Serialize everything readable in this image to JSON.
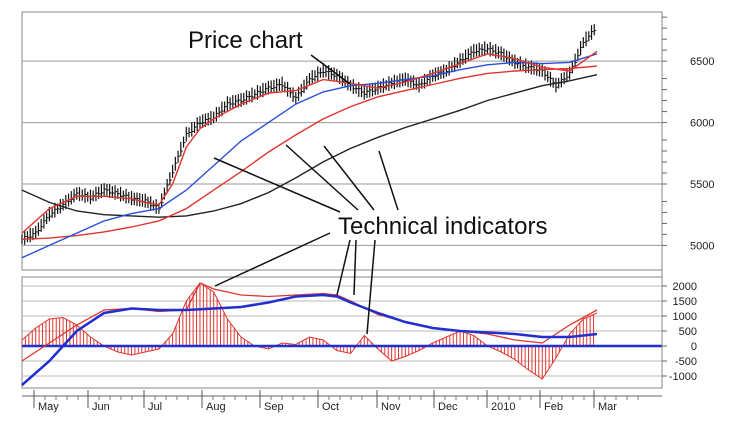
{
  "annotations": {
    "price_chart": "Price chart",
    "technical_indicators": "Technical indicators"
  },
  "colors": {
    "price_bars": "#111111",
    "fast_ma": "#e0352f",
    "mid_ma": "#2a4fd6",
    "slow_ma": "#e0352f",
    "long_ma": "#222222",
    "histogram": "#e0352f",
    "signal": "#1f2fd0",
    "zero_line": "#1f2fd0",
    "grid": "#9a9a9a"
  },
  "chart_data": [
    {
      "type": "line",
      "name_hint": "price panel",
      "x": [
        "May",
        "Jun",
        "Jul",
        "Aug",
        "Sep",
        "Oct",
        "Nov",
        "Dec",
        "2010",
        "Feb",
        "Mar"
      ],
      "ytick_labels": [
        "5000",
        "5500",
        "6000",
        "6500"
      ],
      "yticks": [
        5000,
        5500,
        6000,
        6500
      ],
      "ylim": [
        4800,
        6900
      ],
      "grid": true,
      "price_points": [
        [
          0,
          5050
        ],
        [
          5,
          5100
        ],
        [
          10,
          5250
        ],
        [
          15,
          5330
        ],
        [
          20,
          5420
        ],
        [
          25,
          5390
        ],
        [
          30,
          5450
        ],
        [
          35,
          5420
        ],
        [
          40,
          5380
        ],
        [
          45,
          5360
        ],
        [
          50,
          5300
        ],
        [
          55,
          5600
        ],
        [
          60,
          5900
        ],
        [
          65,
          6000
        ],
        [
          70,
          6040
        ],
        [
          75,
          6150
        ],
        [
          80,
          6180
        ],
        [
          85,
          6230
        ],
        [
          90,
          6280
        ],
        [
          95,
          6310
        ],
        [
          100,
          6200
        ],
        [
          105,
          6350
        ],
        [
          110,
          6420
        ],
        [
          115,
          6380
        ],
        [
          120,
          6300
        ],
        [
          125,
          6240
        ],
        [
          130,
          6280
        ],
        [
          135,
          6320
        ],
        [
          140,
          6350
        ],
        [
          145,
          6300
        ],
        [
          150,
          6380
        ],
        [
          155,
          6420
        ],
        [
          160,
          6500
        ],
        [
          165,
          6580
        ],
        [
          170,
          6600
        ],
        [
          175,
          6560
        ],
        [
          180,
          6490
        ],
        [
          185,
          6450
        ],
        [
          190,
          6420
        ],
        [
          195,
          6300
        ],
        [
          200,
          6400
        ],
        [
          205,
          6650
        ],
        [
          210,
          6780
        ]
      ],
      "series_ma_fast": [
        [
          0,
          5100
        ],
        [
          10,
          5300
        ],
        [
          20,
          5400
        ],
        [
          30,
          5400
        ],
        [
          40,
          5380
        ],
        [
          45,
          5350
        ],
        [
          50,
          5330
        ],
        [
          55,
          5500
        ],
        [
          60,
          5800
        ],
        [
          65,
          5950
        ],
        [
          70,
          6030
        ],
        [
          80,
          6150
        ],
        [
          90,
          6240
        ],
        [
          100,
          6260
        ],
        [
          110,
          6350
        ],
        [
          120,
          6320
        ],
        [
          130,
          6280
        ],
        [
          140,
          6330
        ],
        [
          150,
          6400
        ],
        [
          160,
          6480
        ],
        [
          170,
          6560
        ],
        [
          180,
          6520
        ],
        [
          190,
          6450
        ],
        [
          200,
          6420
        ],
        [
          210,
          6580
        ]
      ],
      "series_ma_mid": [
        [
          0,
          4900
        ],
        [
          10,
          5000
        ],
        [
          20,
          5100
        ],
        [
          30,
          5200
        ],
        [
          40,
          5260
        ],
        [
          50,
          5300
        ],
        [
          60,
          5450
        ],
        [
          70,
          5650
        ],
        [
          80,
          5850
        ],
        [
          90,
          6000
        ],
        [
          100,
          6150
        ],
        [
          110,
          6250
        ],
        [
          120,
          6300
        ],
        [
          130,
          6320
        ],
        [
          140,
          6350
        ],
        [
          150,
          6380
        ],
        [
          160,
          6430
        ],
        [
          170,
          6470
        ],
        [
          180,
          6490
        ],
        [
          190,
          6480
        ],
        [
          200,
          6490
        ],
        [
          210,
          6560
        ]
      ],
      "series_ma_slow": [
        [
          0,
          5050
        ],
        [
          10,
          5060
        ],
        [
          20,
          5080
        ],
        [
          30,
          5110
        ],
        [
          40,
          5150
        ],
        [
          50,
          5200
        ],
        [
          60,
          5300
        ],
        [
          70,
          5450
        ],
        [
          80,
          5600
        ],
        [
          90,
          5760
        ],
        [
          100,
          5900
        ],
        [
          110,
          6030
        ],
        [
          120,
          6130
        ],
        [
          130,
          6210
        ],
        [
          140,
          6260
        ],
        [
          150,
          6310
        ],
        [
          160,
          6360
        ],
        [
          170,
          6400
        ],
        [
          180,
          6420
        ],
        [
          190,
          6430
        ],
        [
          200,
          6440
        ],
        [
          210,
          6460
        ]
      ],
      "series_ma_long": [
        [
          0,
          5450
        ],
        [
          10,
          5350
        ],
        [
          20,
          5280
        ],
        [
          30,
          5250
        ],
        [
          40,
          5240
        ],
        [
          50,
          5230
        ],
        [
          60,
          5240
        ],
        [
          70,
          5280
        ],
        [
          80,
          5340
        ],
        [
          90,
          5430
        ],
        [
          100,
          5550
        ],
        [
          110,
          5680
        ],
        [
          120,
          5790
        ],
        [
          130,
          5880
        ],
        [
          140,
          5960
        ],
        [
          150,
          6030
        ],
        [
          160,
          6100
        ],
        [
          170,
          6180
        ],
        [
          180,
          6240
        ],
        [
          190,
          6300
        ],
        [
          200,
          6340
        ],
        [
          210,
          6390
        ]
      ]
    },
    {
      "type": "bar",
      "name_hint": "indicator panel",
      "x": [
        "May",
        "Jun",
        "Jul",
        "Aug",
        "Sep",
        "Oct",
        "Nov",
        "Dec",
        "2010",
        "Feb",
        "Mar"
      ],
      "ytick_labels": [
        "2000",
        "1500",
        "1000",
        "500",
        "0",
        "-500",
        "-1000"
      ],
      "yticks": [
        2000,
        1500,
        1000,
        500,
        0,
        -500,
        -1000
      ],
      "ylim": [
        -1400,
        2300
      ],
      "grid": true,
      "histogram": [
        [
          0,
          200
        ],
        [
          5,
          600
        ],
        [
          10,
          900
        ],
        [
          15,
          950
        ],
        [
          20,
          700
        ],
        [
          25,
          300
        ],
        [
          30,
          0
        ],
        [
          35,
          -200
        ],
        [
          40,
          -300
        ],
        [
          45,
          -200
        ],
        [
          50,
          -100
        ],
        [
          55,
          400
        ],
        [
          60,
          1500
        ],
        [
          65,
          2100
        ],
        [
          70,
          1800
        ],
        [
          75,
          900
        ],
        [
          80,
          300
        ],
        [
          85,
          0
        ],
        [
          90,
          -100
        ],
        [
          95,
          100
        ],
        [
          100,
          50
        ],
        [
          105,
          300
        ],
        [
          110,
          200
        ],
        [
          115,
          -150
        ],
        [
          120,
          -250
        ],
        [
          125,
          350
        ],
        [
          130,
          -100
        ],
        [
          135,
          -500
        ],
        [
          140,
          -350
        ],
        [
          145,
          -150
        ],
        [
          150,
          100
        ],
        [
          155,
          300
        ],
        [
          160,
          500
        ],
        [
          165,
          350
        ],
        [
          170,
          0
        ],
        [
          175,
          -200
        ],
        [
          180,
          -450
        ],
        [
          185,
          -800
        ],
        [
          190,
          -1100
        ],
        [
          195,
          -400
        ],
        [
          200,
          400
        ],
        [
          205,
          900
        ],
        [
          210,
          1100
        ]
      ],
      "macd_line": [
        [
          0,
          -500
        ],
        [
          10,
          100
        ],
        [
          20,
          700
        ],
        [
          30,
          1200
        ],
        [
          40,
          1250
        ],
        [
          50,
          1150
        ],
        [
          60,
          1200
        ],
        [
          65,
          2100
        ],
        [
          70,
          1900
        ],
        [
          80,
          1700
        ],
        [
          90,
          1650
        ],
        [
          100,
          1700
        ],
        [
          110,
          1750
        ],
        [
          115,
          1700
        ],
        [
          120,
          1500
        ],
        [
          130,
          1050
        ],
        [
          140,
          800
        ],
        [
          150,
          600
        ],
        [
          160,
          500
        ],
        [
          170,
          400
        ],
        [
          180,
          200
        ],
        [
          190,
          100
        ],
        [
          200,
          700
        ],
        [
          210,
          1200
        ]
      ],
      "signal_line": [
        [
          0,
          -1300
        ],
        [
          10,
          -500
        ],
        [
          20,
          500
        ],
        [
          30,
          1100
        ],
        [
          40,
          1250
        ],
        [
          50,
          1200
        ],
        [
          60,
          1200
        ],
        [
          70,
          1250
        ],
        [
          80,
          1300
        ],
        [
          90,
          1450
        ],
        [
          100,
          1650
        ],
        [
          110,
          1700
        ],
        [
          115,
          1650
        ],
        [
          120,
          1450
        ],
        [
          130,
          1100
        ],
        [
          140,
          800
        ],
        [
          150,
          600
        ],
        [
          160,
          500
        ],
        [
          170,
          450
        ],
        [
          180,
          400
        ],
        [
          190,
          300
        ],
        [
          200,
          300
        ],
        [
          210,
          400
        ]
      ]
    }
  ]
}
